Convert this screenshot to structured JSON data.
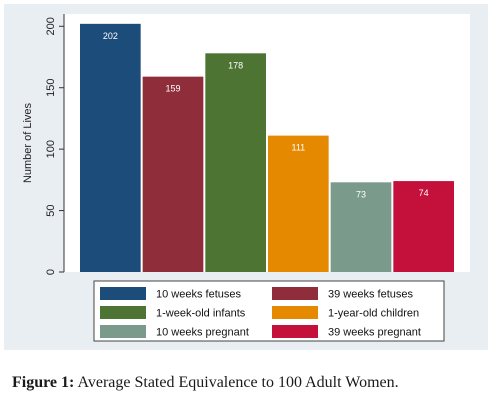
{
  "chart_data": {
    "type": "bar",
    "categories": [
      "10 weeks fetuses",
      "39 weeks fetuses",
      "1-week-old infants",
      "1-year-old children",
      "10 weeks pregnant",
      "39 weeks pregnant"
    ],
    "values": [
      202,
      159,
      178,
      111,
      73,
      74
    ],
    "data_labels": [
      "202",
      "159",
      "178",
      "111",
      "73",
      "74"
    ],
    "colors": [
      "#1c4d7a",
      "#8f2d3a",
      "#4d7432",
      "#e58a00",
      "#7a9a8c",
      "#c4113c"
    ],
    "ylabel": "Number of Lives",
    "xlabel": "",
    "ylim": [
      0,
      210
    ],
    "yticks": [
      0,
      50,
      100,
      150,
      200
    ],
    "ytick_labels": [
      "0",
      "50",
      "100",
      "150",
      "200"
    ],
    "grid": false,
    "legend_position": "bottom",
    "legend": [
      "10 weeks fetuses",
      "39 weeks fetuses",
      "1-week-old infants",
      "1-year-old children",
      "10 weeks pregnant",
      "39 weeks pregnant"
    ]
  },
  "caption": {
    "label": "Figure 1:",
    "text": " Average Stated Equivalence to 100 Adult Women."
  }
}
